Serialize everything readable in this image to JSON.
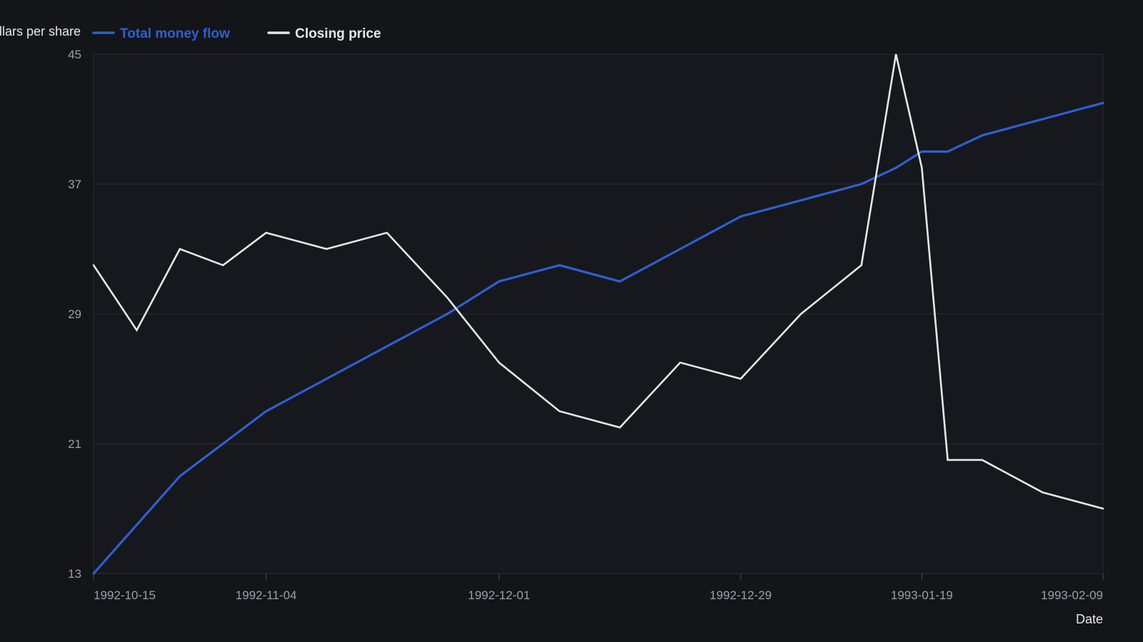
{
  "chart_data": {
    "type": "line",
    "ylabel": "Dollars per share",
    "xlabel": "Date",
    "ylim": [
      13,
      45
    ],
    "yticks": [
      13,
      21,
      29,
      37,
      45
    ],
    "xlim": [
      "1992-10-15",
      "1993-02-09"
    ],
    "xticks": [
      "1992-10-15",
      "1992-11-04",
      "1992-12-01",
      "1992-12-29",
      "1993-01-19",
      "1993-02-09"
    ],
    "grid": true,
    "legend_position": "top-left",
    "x": [
      "1992-10-15",
      "1992-10-20",
      "1992-10-25",
      "1992-10-30",
      "1992-11-04",
      "1992-11-11",
      "1992-11-18",
      "1992-11-25",
      "1992-12-01",
      "1992-12-08",
      "1992-12-15",
      "1992-12-22",
      "1992-12-29",
      "1993-01-05",
      "1993-01-12",
      "1993-01-16",
      "1993-01-19",
      "1993-01-22",
      "1993-01-26",
      "1993-02-02",
      "1993-02-09"
    ],
    "series": [
      {
        "name": "Total money flow",
        "color": "#2f5fd0",
        "values": [
          13,
          16,
          19,
          21,
          23,
          25,
          27,
          29,
          31,
          32,
          31,
          33,
          35,
          36,
          37,
          38,
          39,
          39,
          40,
          41,
          42
        ]
      },
      {
        "name": "Closing price",
        "color": "#e6e6e6",
        "values": [
          32,
          28,
          33,
          32,
          34,
          33,
          34,
          30,
          26,
          23,
          22,
          26,
          25,
          29,
          32,
          45,
          38,
          20,
          20,
          18,
          17
        ]
      }
    ]
  }
}
